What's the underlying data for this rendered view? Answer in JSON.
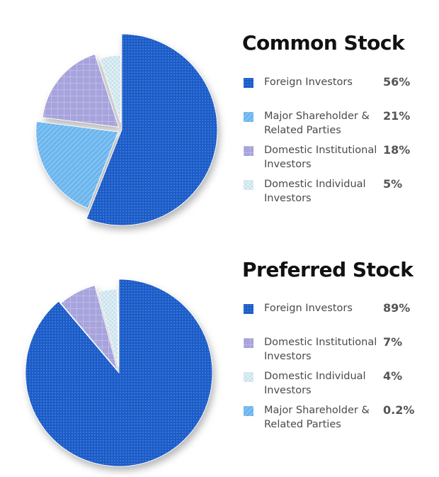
{
  "chart_data": [
    {
      "type": "pie",
      "title": "Common Stock",
      "legend_position": "right",
      "categories": [
        "Foreign Investors",
        "Major Shareholder & Related Parties",
        "Domestic Institutional Investors",
        "Domestic Individual Investors"
      ],
      "values": [
        56,
        21,
        18,
        5
      ],
      "value_labels": [
        "56%",
        "21%",
        "18%",
        "5%"
      ],
      "colors": [
        "#1a5cc8",
        "#6cb6ee",
        "#a7a3dc",
        "#c6e1ea"
      ],
      "patterns": [
        "dots",
        "diagonal",
        "grid",
        "crosshatch"
      ]
    },
    {
      "type": "pie",
      "title": "Preferred Stock",
      "legend_position": "right",
      "categories": [
        "Foreign Investors",
        "Domestic Institutional Investors",
        "Domestic Individual Investors",
        "Major Shareholder & Related Parties"
      ],
      "values": [
        89,
        7,
        4,
        0.2
      ],
      "value_labels": [
        "89%",
        "7%",
        "4%",
        "0.2%"
      ],
      "colors": [
        "#1a5cc8",
        "#a7a3dc",
        "#c6e1ea",
        "#6cb6ee"
      ],
      "patterns": [
        "dots",
        "grid",
        "crosshatch",
        "diagonal"
      ]
    }
  ]
}
